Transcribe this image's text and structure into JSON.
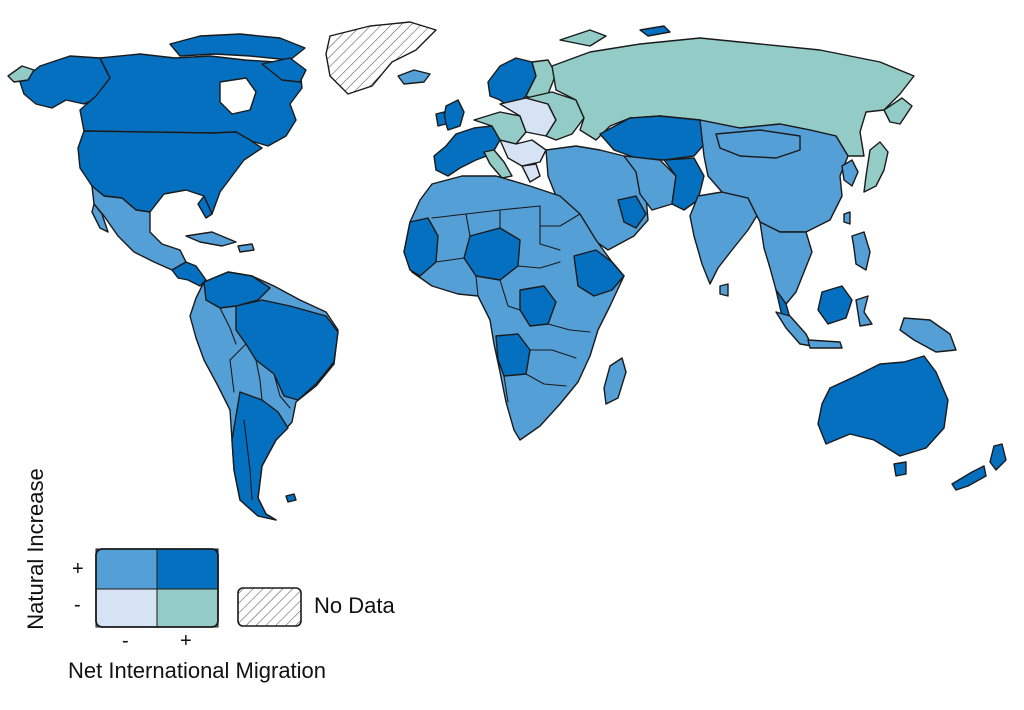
{
  "map": {
    "colors": {
      "pos_natural_neg_migration": "#559fd7",
      "pos_natural_pos_migration": "#0570bf",
      "neg_natural_neg_migration": "#d6e3f4",
      "neg_natural_pos_migration": "#93ccc6",
      "no_data": "hatched"
    }
  },
  "legend": {
    "y_axis_label": "Natural Increase",
    "x_axis_label": "Net International Migration",
    "y_tick_plus": "+",
    "y_tick_minus": "-",
    "x_tick_minus": "-",
    "x_tick_plus": "+",
    "no_data_label": "No Data"
  }
}
